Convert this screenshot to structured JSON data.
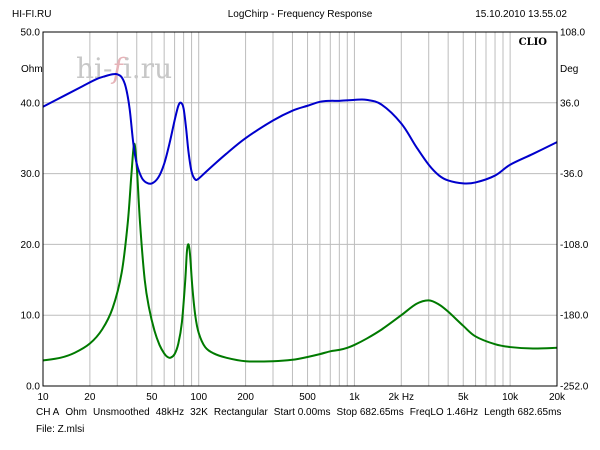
{
  "header": {
    "left": "HI-FI.RU",
    "center": "LogChirp - Frequency Response",
    "right": "15.10.2010 13.55.02"
  },
  "watermark": {
    "prefix": "hi-",
    "f": "f",
    "suffix": "i.ru"
  },
  "badge": "CLIO",
  "footer": {
    "items": [
      "CH A",
      "Ohm",
      "Unsmoothed",
      "48kHz",
      "32K",
      "Rectangular",
      "Start 0.00ms",
      "Stop 682.65ms",
      "FreqLO 1.46Hz",
      "Length 682.65ms"
    ],
    "file": "File: Z.mlsi"
  },
  "colors": {
    "background": "#ffffff",
    "grid": "#bdbdbd",
    "impedance": "#007a00",
    "phase": "#0000cc"
  },
  "chart_data": {
    "type": "line",
    "title": "LogChirp - Frequency Response",
    "x_scale": "log",
    "xlim": [
      10,
      20000
    ],
    "x_ticks": [
      10,
      20,
      50,
      100,
      200,
      500,
      1000,
      2000,
      5000,
      10000,
      20000
    ],
    "x_tick_labels": [
      "10",
      "20",
      "50",
      "100",
      "200",
      "500",
      "1k",
      "2k Hz",
      "5k",
      "10k",
      "20k"
    ],
    "y_left": {
      "unit": "Ohm",
      "range": [
        0,
        50
      ],
      "ticks": [
        0,
        10,
        20,
        30,
        40,
        50
      ],
      "tick_labels": [
        "0.0",
        "10.0",
        "20.0",
        "30.0",
        "40.0",
        "50.0"
      ]
    },
    "y_right": {
      "unit": "Deg",
      "range": [
        -252,
        108
      ],
      "ticks": [
        -252,
        -180,
        -108,
        -36,
        36,
        108
      ],
      "tick_labels": [
        "-252.0",
        "-180.0",
        "-108.0",
        "-36.0",
        "36.0",
        "108.0"
      ]
    },
    "grid": true,
    "series": [
      {
        "axis": "left",
        "x": [
          10,
          13,
          16,
          20,
          24,
          28,
          32,
          35,
          37,
          38.5,
          40,
          42,
          45,
          48,
          52,
          56,
          60,
          63,
          66,
          70,
          74,
          78,
          82,
          84,
          86,
          88,
          91,
          95,
          100,
          110,
          125,
          150,
          200,
          300,
          400,
          500,
          600,
          700,
          800,
          900,
          1000,
          1200,
          1500,
          2000,
          2500,
          3000,
          3500,
          4000,
          5000,
          6000,
          8000,
          10000,
          14000,
          20000
        ],
        "y": [
          3.6,
          4.0,
          4.7,
          6.0,
          8.0,
          11.0,
          16.0,
          23.0,
          30.0,
          34.2,
          31.0,
          23.0,
          15.0,
          11.0,
          7.8,
          5.8,
          4.6,
          4.1,
          4.0,
          4.5,
          6.0,
          9.0,
          15.0,
          19.0,
          20.0,
          18.5,
          14.0,
          10.0,
          7.5,
          5.5,
          4.6,
          4.0,
          3.5,
          3.5,
          3.7,
          4.1,
          4.5,
          4.9,
          5.1,
          5.4,
          5.8,
          6.7,
          8.0,
          10.0,
          11.6,
          12.1,
          11.5,
          10.5,
          8.5,
          7.0,
          5.9,
          5.5,
          5.3,
          5.4
        ]
      },
      {
        "axis": "right",
        "x": [
          10,
          14,
          18,
          22,
          25,
          28,
          30,
          32,
          34,
          36,
          38,
          40,
          43,
          46,
          50,
          55,
          60,
          65,
          70,
          74,
          77,
          80,
          83,
          86,
          90,
          95,
          100,
          110,
          125,
          150,
          200,
          300,
          400,
          500,
          600,
          700,
          800,
          1000,
          1200,
          1500,
          2000,
          2500,
          3000,
          3500,
          4000,
          5000,
          6000,
          8000,
          10000,
          14000,
          20000
        ],
        "y": [
          32,
          44,
          53,
          60,
          63,
          65,
          65,
          62,
          52,
          30,
          -5,
          -26,
          -40,
          -45,
          -46,
          -40,
          -26,
          -5,
          18,
          33,
          36,
          30,
          10,
          -14,
          -34,
          -42,
          -41,
          -35,
          -27,
          -16,
          0,
          18,
          28,
          33,
          37,
          38,
          38,
          39,
          39,
          34,
          15,
          -9,
          -27,
          -38,
          -43,
          -46,
          -45,
          -38,
          -27,
          -16,
          -4
        ]
      }
    ]
  }
}
